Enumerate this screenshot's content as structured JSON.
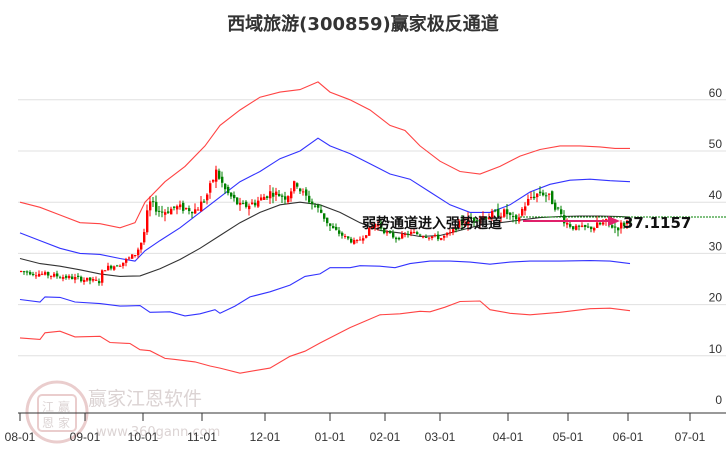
{
  "title": "西域旅游(300859)赢家极反通道",
  "watermark": {
    "brand": "赢家江恩软件",
    "url": "www.360gann.com",
    "seal_chars": [
      "江",
      "赢",
      "恩",
      "家"
    ]
  },
  "colors": {
    "up": "#ff0000",
    "down": "#008000",
    "outer_band": "#ff4444",
    "inner_band": "#3333ff",
    "mid_line": "#333333",
    "arrow": "#e0206a",
    "price_line": "#008000",
    "grid": "#e0e0e0"
  },
  "chart_data": {
    "type": "candlestick",
    "title": "西域旅游(300859)赢家极反通道",
    "xlabel": "",
    "ylabel": "",
    "ylim": [
      0,
      65
    ],
    "y_ticks": [
      0,
      10,
      20,
      30,
      40,
      50,
      60
    ],
    "x_ticks": [
      "08-01",
      "09-01",
      "10-01",
      "11-01",
      "12-01",
      "01-01",
      "02-01",
      "03-01",
      "04-01",
      "05-01",
      "06-01",
      "07-01"
    ],
    "grid": true,
    "annotation": "弱势通道进入强势通道",
    "last_price_label": "37.1157",
    "last_price": 37.1157,
    "series": [
      {
        "name": "outer_upper_band",
        "color": "#ff4444",
        "points": [
          [
            20,
            40
          ],
          [
            40,
            39
          ],
          [
            60,
            37.5
          ],
          [
            80,
            36
          ],
          [
            100,
            35.8
          ],
          [
            120,
            35
          ],
          [
            135,
            36
          ],
          [
            145,
            40
          ],
          [
            165,
            44
          ],
          [
            185,
            47
          ],
          [
            205,
            51
          ],
          [
            220,
            55
          ],
          [
            240,
            58
          ],
          [
            260,
            60.5
          ],
          [
            280,
            61.5
          ],
          [
            300,
            62
          ],
          [
            318,
            63.5
          ],
          [
            330,
            61.5
          ],
          [
            350,
            60
          ],
          [
            370,
            58
          ],
          [
            390,
            55
          ],
          [
            405,
            54
          ],
          [
            420,
            51
          ],
          [
            440,
            48
          ],
          [
            460,
            46
          ],
          [
            480,
            45.5
          ],
          [
            500,
            47
          ],
          [
            520,
            49
          ],
          [
            540,
            50.3
          ],
          [
            560,
            51
          ],
          [
            580,
            51
          ],
          [
            600,
            50.8
          ],
          [
            615,
            50.5
          ],
          [
            630,
            50.5
          ]
        ]
      },
      {
        "name": "inner_upper_band",
        "color": "#3333ff",
        "points": [
          [
            20,
            34
          ],
          [
            40,
            32.5
          ],
          [
            60,
            31
          ],
          [
            80,
            30
          ],
          [
            100,
            29.8
          ],
          [
            120,
            29
          ],
          [
            135,
            28.5
          ],
          [
            145,
            30.5
          ],
          [
            160,
            32.5
          ],
          [
            180,
            35
          ],
          [
            200,
            38
          ],
          [
            220,
            41
          ],
          [
            240,
            44
          ],
          [
            260,
            46
          ],
          [
            280,
            48.5
          ],
          [
            300,
            50
          ],
          [
            318,
            52.5
          ],
          [
            330,
            51
          ],
          [
            350,
            49.5
          ],
          [
            370,
            47.5
          ],
          [
            390,
            45.5
          ],
          [
            410,
            44.5
          ],
          [
            430,
            42
          ],
          [
            450,
            39.5
          ],
          [
            470,
            38
          ],
          [
            490,
            38
          ],
          [
            510,
            39.5
          ],
          [
            530,
            42
          ],
          [
            550,
            43.5
          ],
          [
            570,
            44.3
          ],
          [
            590,
            44.5
          ],
          [
            610,
            44.2
          ],
          [
            630,
            44
          ]
        ]
      },
      {
        "name": "mid_line",
        "color": "#333333",
        "points": [
          [
            20,
            29
          ],
          [
            40,
            28
          ],
          [
            60,
            27.5
          ],
          [
            80,
            26.8
          ],
          [
            100,
            26
          ],
          [
            120,
            25.5
          ],
          [
            140,
            25.6
          ],
          [
            160,
            27
          ],
          [
            180,
            28.8
          ],
          [
            200,
            31
          ],
          [
            220,
            33.5
          ],
          [
            240,
            36
          ],
          [
            260,
            38
          ],
          [
            280,
            39.5
          ],
          [
            300,
            40
          ],
          [
            320,
            39.5
          ],
          [
            340,
            38
          ],
          [
            360,
            36
          ],
          [
            380,
            34.5
          ],
          [
            400,
            34
          ],
          [
            420,
            33.3
          ],
          [
            440,
            33.5
          ],
          [
            460,
            34.5
          ],
          [
            480,
            35.5
          ],
          [
            500,
            36
          ],
          [
            520,
            36.5
          ],
          [
            540,
            37
          ],
          [
            560,
            37.2
          ],
          [
            580,
            37.3
          ],
          [
            600,
            37.3
          ],
          [
            620,
            37.2
          ],
          [
            630,
            37.1
          ]
        ]
      },
      {
        "name": "inner_lower_band",
        "color": "#3333ff",
        "points": [
          [
            20,
            21
          ],
          [
            40,
            20.5
          ],
          [
            45,
            21.5
          ],
          [
            60,
            21.4
          ],
          [
            75,
            20.5
          ],
          [
            100,
            20.2
          ],
          [
            120,
            19.7
          ],
          [
            140,
            19.8
          ],
          [
            150,
            18.5
          ],
          [
            170,
            18.6
          ],
          [
            185,
            17.8
          ],
          [
            200,
            18.2
          ],
          [
            215,
            19
          ],
          [
            220,
            18.3
          ],
          [
            235,
            19.7
          ],
          [
            250,
            21.5
          ],
          [
            270,
            22.5
          ],
          [
            290,
            23.8
          ],
          [
            305,
            25.5
          ],
          [
            320,
            26
          ],
          [
            330,
            27.2
          ],
          [
            350,
            27.2
          ],
          [
            360,
            27.6
          ],
          [
            380,
            27.5
          ],
          [
            395,
            27.2
          ],
          [
            410,
            28
          ],
          [
            430,
            28.5
          ],
          [
            450,
            28.5
          ],
          [
            470,
            28.3
          ],
          [
            490,
            27.9
          ],
          [
            510,
            28.3
          ],
          [
            530,
            28.5
          ],
          [
            560,
            28.5
          ],
          [
            590,
            28.6
          ],
          [
            610,
            28.5
          ],
          [
            630,
            28
          ]
        ]
      },
      {
        "name": "outer_lower_band",
        "color": "#ff4444",
        "points": [
          [
            20,
            13.5
          ],
          [
            40,
            13.2
          ],
          [
            45,
            14.5
          ],
          [
            60,
            14.8
          ],
          [
            75,
            13.7
          ],
          [
            100,
            13.8
          ],
          [
            110,
            12.6
          ],
          [
            130,
            12.4
          ],
          [
            140,
            11.2
          ],
          [
            150,
            11
          ],
          [
            165,
            9.5
          ],
          [
            175,
            9.3
          ],
          [
            195,
            8.8
          ],
          [
            210,
            8
          ],
          [
            220,
            7.6
          ],
          [
            240,
            6.6
          ],
          [
            255,
            7.1
          ],
          [
            270,
            7.6
          ],
          [
            290,
            9.9
          ],
          [
            305,
            10.9
          ],
          [
            320,
            12.5
          ],
          [
            330,
            13.5
          ],
          [
            350,
            15.5
          ],
          [
            380,
            18
          ],
          [
            400,
            18.2
          ],
          [
            420,
            18.7
          ],
          [
            430,
            18.6
          ],
          [
            445,
            19.5
          ],
          [
            460,
            20.6
          ],
          [
            480,
            20.7
          ],
          [
            490,
            19
          ],
          [
            510,
            18.3
          ],
          [
            530,
            18
          ],
          [
            560,
            18.5
          ],
          [
            590,
            19.2
          ],
          [
            610,
            19.3
          ],
          [
            630,
            18.8
          ]
        ]
      }
    ],
    "candles_summary": "Aug–Sep ~24–27, sharp rally Oct–Nov to ~45–48, range 38–43 into Dec, decline to ~31–33 by Jan–Feb, 33–37 through Mar, spike to ~43 mid-Apr, settle 34–37 May–Jun, last ~37.1"
  }
}
